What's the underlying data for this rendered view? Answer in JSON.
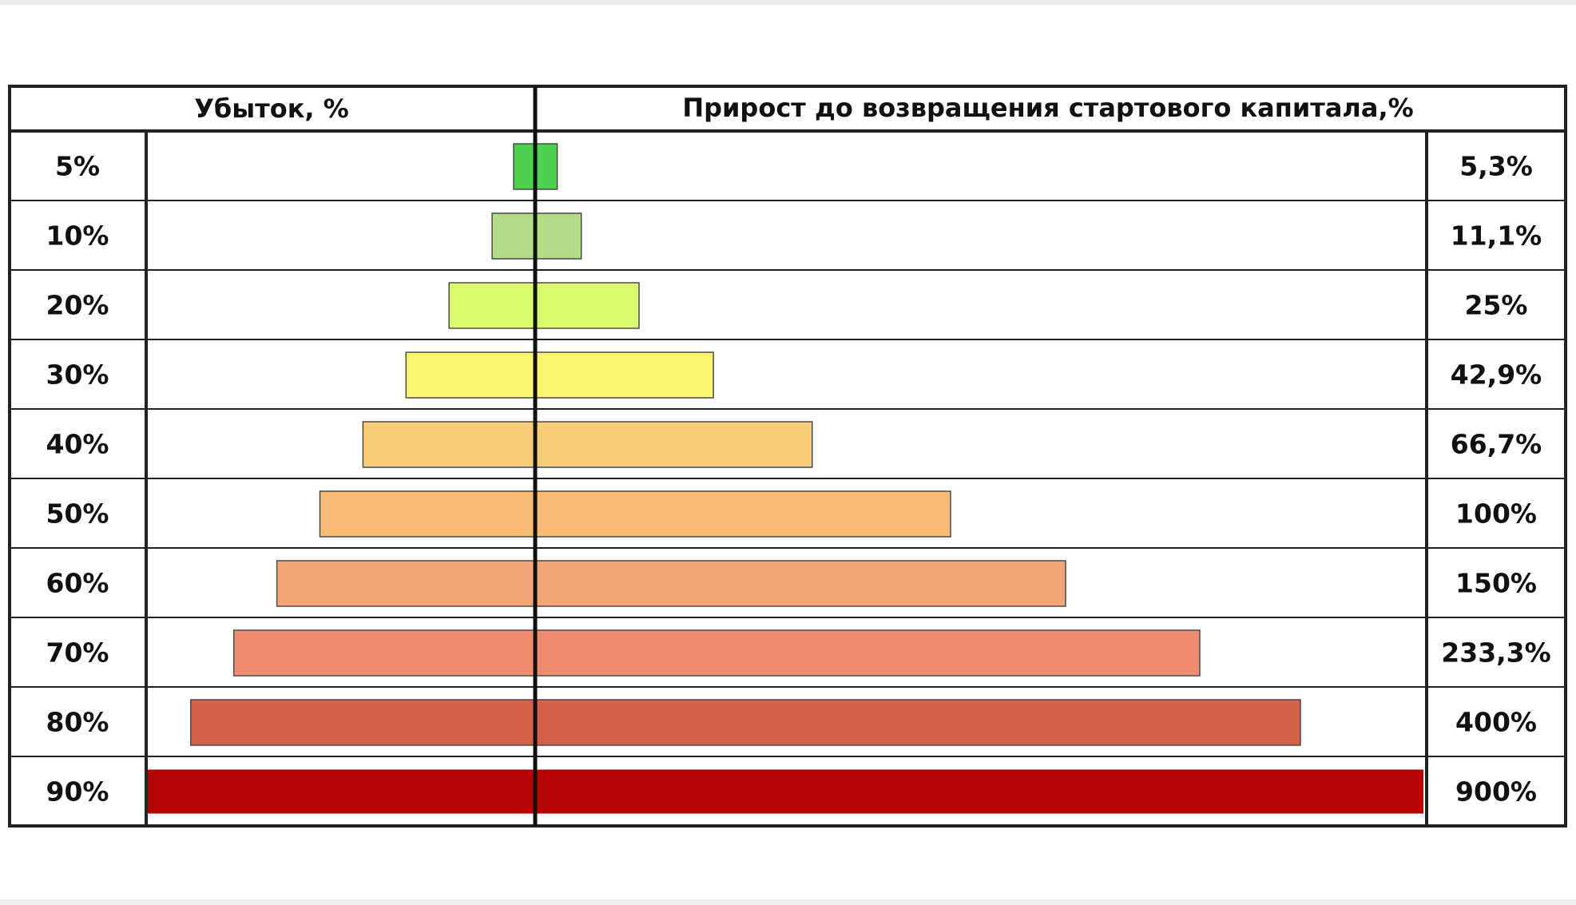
{
  "chart_data": {
    "type": "bar",
    "headers": {
      "left": "Убыток, %",
      "right": "Прирост до возвращения стартового капитала,%"
    },
    "categories": [
      "5%",
      "10%",
      "20%",
      "30%",
      "40%",
      "50%",
      "60%",
      "70%",
      "80%",
      "90%"
    ],
    "series": [
      {
        "values": [
          5,
          10,
          20,
          30,
          40,
          50,
          60,
          70,
          80,
          90
        ]
      },
      {
        "values": [
          5.3,
          11.1,
          25,
          42.9,
          66.7,
          100,
          150,
          233.3,
          400,
          900
        ]
      }
    ],
    "value_labels": [
      "5,3%",
      "11,1%",
      "25%",
      "42,9%",
      "66,7%",
      "100%",
      "150%",
      "233,3%",
      "400%",
      "900%"
    ],
    "colors": [
      "#4cd24f",
      "#b2dc88",
      "#dcfa6e",
      "#fbf66e",
      "#f8cd77",
      "#f7bb75",
      "#f2a675",
      "#f28c70",
      "#d66048",
      "#b40303"
    ],
    "right_axis_scale": "non-linear"
  }
}
